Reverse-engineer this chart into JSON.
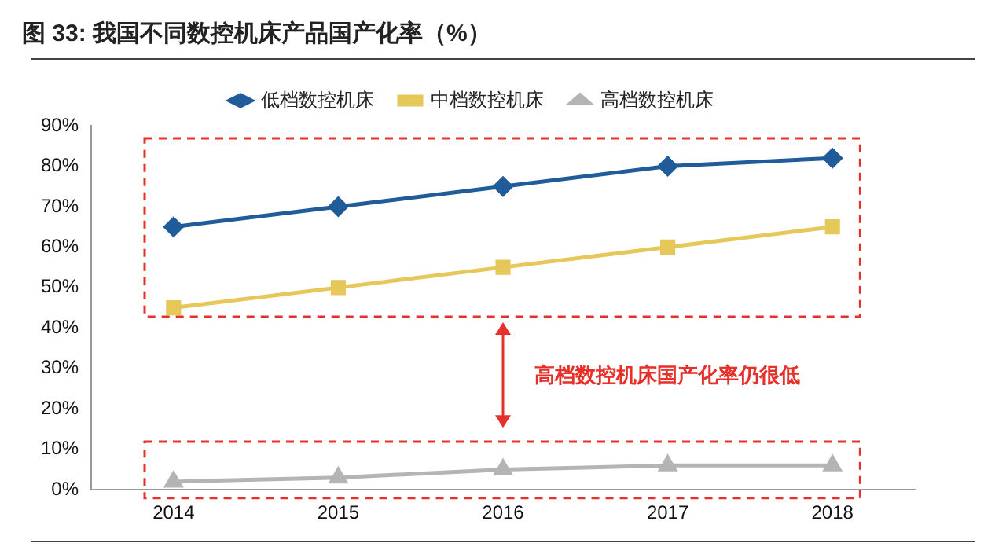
{
  "chart_data": {
    "type": "line",
    "title": "图 33: 我国不同数控机床产品国产化率（%）",
    "categories": [
      "2014",
      "2015",
      "2016",
      "2017",
      "2018"
    ],
    "series": [
      {
        "name": "低档数控机床",
        "color": "#1f5c99",
        "marker": "diamond",
        "values": [
          65,
          70,
          75,
          80,
          82
        ]
      },
      {
        "name": "中档数控机床",
        "color": "#e6c75a",
        "marker": "square",
        "values": [
          45,
          50,
          55,
          60,
          65
        ]
      },
      {
        "name": "高档数控机床",
        "color": "#b4b4b4",
        "marker": "triangle",
        "values": [
          2,
          3,
          5,
          6,
          6
        ]
      }
    ],
    "ylim": [
      0,
      90
    ],
    "yticks": [
      {
        "value": 0,
        "label": "0%"
      },
      {
        "value": 10,
        "label": "10%"
      },
      {
        "value": 20,
        "label": "20%"
      },
      {
        "value": 30,
        "label": "30%"
      },
      {
        "value": 40,
        "label": "40%"
      },
      {
        "value": 50,
        "label": "50%"
      },
      {
        "value": 60,
        "label": "60%"
      },
      {
        "value": 70,
        "label": "70%"
      },
      {
        "value": 80,
        "label": "80%"
      },
      {
        "value": 90,
        "label": "90%"
      }
    ],
    "grid": false,
    "legend": "top",
    "line_style": "solid",
    "annotations": [
      "高档数控机床国产化率仍很低"
    ]
  }
}
